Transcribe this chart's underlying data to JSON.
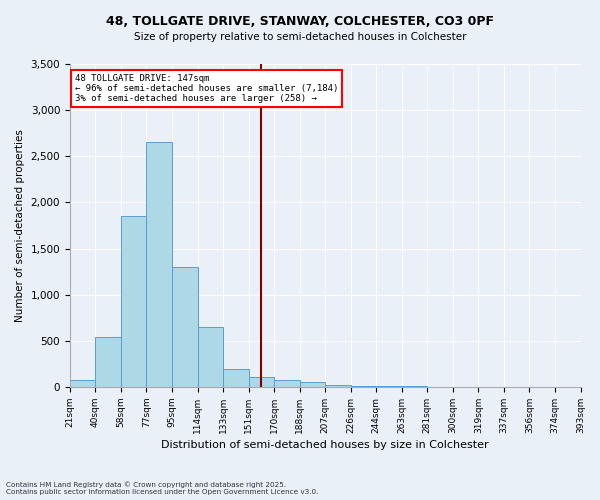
{
  "title1": "48, TOLLGATE DRIVE, STANWAY, COLCHESTER, CO3 0PF",
  "title2": "Size of property relative to semi-detached houses in Colchester",
  "xlabel": "Distribution of semi-detached houses by size in Colchester",
  "ylabel": "Number of semi-detached properties",
  "footnote1": "Contains HM Land Registry data © Crown copyright and database right 2025.",
  "footnote2": "Contains public sector information licensed under the Open Government Licence v3.0.",
  "annotation_title": "48 TOLLGATE DRIVE: 147sqm",
  "annotation_line1": "← 96% of semi-detached houses are smaller (7,184)",
  "annotation_line2": "3% of semi-detached houses are larger (258) →",
  "bar_color": "#add8e6",
  "bar_edge_color": "#5b9bd5",
  "vline_color": "#800000",
  "annotation_box_color": "#ff0000",
  "background_color": "#eaf0f8",
  "x_labels": [
    "21sqm",
    "40sqm",
    "58sqm",
    "77sqm",
    "95sqm",
    "114sqm",
    "133sqm",
    "151sqm",
    "170sqm",
    "188sqm",
    "207sqm",
    "226sqm",
    "244sqm",
    "263sqm",
    "281sqm",
    "300sqm",
    "319sqm",
    "337sqm",
    "356sqm",
    "374sqm",
    "393sqm"
  ],
  "bar_values": [
    75,
    540,
    1850,
    2650,
    1300,
    650,
    200,
    110,
    75,
    50,
    25,
    10,
    5,
    5,
    0,
    0,
    0,
    0,
    0,
    0
  ],
  "vline_position": 7.5,
  "ylim": [
    0,
    3500
  ],
  "yticks": [
    0,
    500,
    1000,
    1500,
    2000,
    2500,
    3000,
    3500
  ]
}
